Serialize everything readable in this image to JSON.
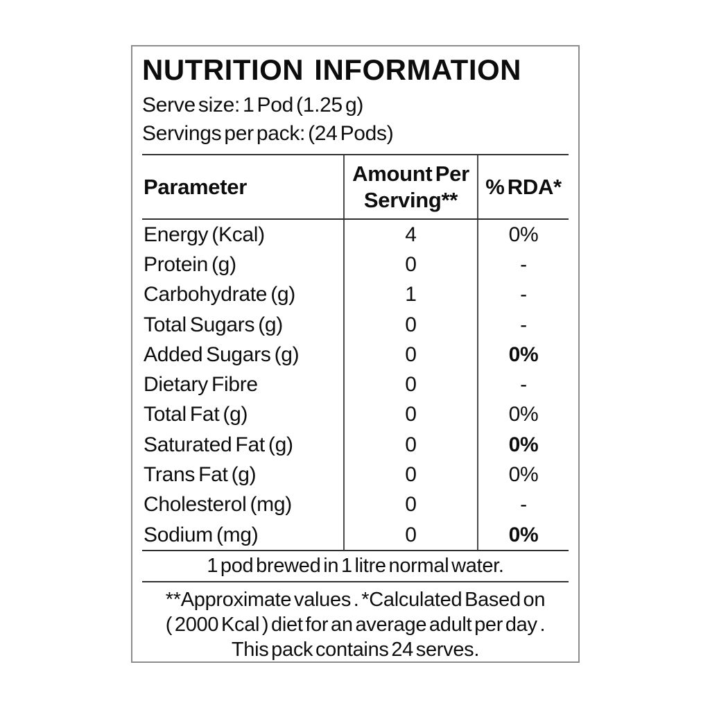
{
  "label": {
    "title": "NUTRITION INFORMATION",
    "serve_size_line": "Serve size:  1 Pod (1.25 g)",
    "servings_line": "Servings per pack:  (24 Pods)"
  },
  "table": {
    "headers": [
      "Parameter",
      "Amount Per Serving**",
      "% RDA*"
    ],
    "rows": [
      {
        "parameter": "Energy (Kcal)",
        "amount": "4",
        "rda": "0%",
        "rda_bold": false
      },
      {
        "parameter": "Protein (g)",
        "amount": "0",
        "rda": "-",
        "rda_bold": false
      },
      {
        "parameter": "Carbohydrate (g)",
        "amount": "1",
        "rda": "-",
        "rda_bold": false
      },
      {
        "parameter": "Total Sugars (g)",
        "amount": "0",
        "rda": "-",
        "rda_bold": false
      },
      {
        "parameter": "Added Sugars (g)",
        "amount": "0",
        "rda": "0%",
        "rda_bold": true
      },
      {
        "parameter": "Dietary Fibre",
        "amount": "0",
        "rda": "-",
        "rda_bold": false
      },
      {
        "parameter": "Total Fat (g)",
        "amount": "0",
        "rda": "0%",
        "rda_bold": false
      },
      {
        "parameter": "Saturated Fat (g)",
        "amount": "0",
        "rda": "0%",
        "rda_bold": true
      },
      {
        "parameter": "Trans Fat (g)",
        "amount": "0",
        "rda": "0%",
        "rda_bold": false
      },
      {
        "parameter": "Cholesterol (mg)",
        "amount": "0",
        "rda": "-",
        "rda_bold": false
      },
      {
        "parameter": "Sodium (mg)",
        "amount": "0",
        "rda": "0%",
        "rda_bold": true
      }
    ]
  },
  "brewing_note": "1 pod brewed in 1 litre normal water.",
  "footnote_lines": [
    "**Approximate values . *Calculated Based on",
    "( 2000 Kcal ) diet for an average adult per day .",
    "This pack contains 24 serves."
  ],
  "colors": {
    "text": "#0d0d0d",
    "table_line": "#2e2e2e",
    "outer_border": "#8c8c8c",
    "background": "#ffffff"
  }
}
